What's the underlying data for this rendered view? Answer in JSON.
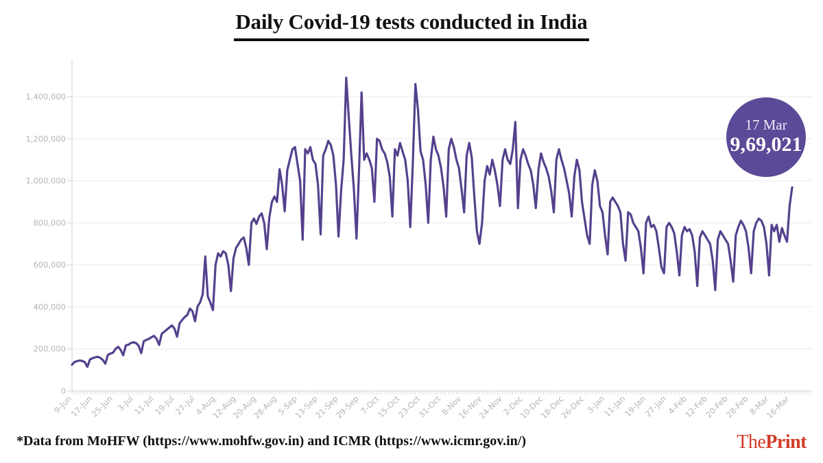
{
  "header": {
    "title": "Daily Covid-19 tests conducted in India"
  },
  "callout": {
    "date": "17 Mar",
    "value": "9,69,021"
  },
  "footer": {
    "source_note": "*Data from MoHFW (https://www.mohfw.gov.in) and ICMR (https://www.icmr.gov.in/)",
    "brand": {
      "the": "The",
      "print": "Print"
    }
  },
  "colors": {
    "line": "#54418d",
    "badge": "#5b4a97",
    "brand": "#d23b26",
    "gridline": "#ededed",
    "axis": "#d9d9d9",
    "axis_label": "#b6b3ba",
    "footer_text": "#101010"
  },
  "chart_data": {
    "type": "line",
    "title": "Daily Covid-19 tests conducted in India",
    "xlabel": "",
    "ylabel": "",
    "grid": "horizontal",
    "legend": "none",
    "ylim": [
      0,
      1500000
    ],
    "y_ticks": [
      0,
      200000,
      400000,
      600000,
      800000,
      1000000,
      1200000,
      1400000
    ],
    "x_tick_interval_days": 8,
    "x_tick_rotation": -45,
    "x_tick_labels": [
      "9-Jun",
      "17-Jun",
      "25-Jun",
      "3-Jul",
      "11-Jul",
      "19-Jul",
      "27-Jul",
      "4-Aug",
      "12-Aug",
      "20-Aug",
      "28-Aug",
      "5-Sep",
      "13-Sep",
      "21-Sep",
      "29-Sep",
      "7-Oct",
      "15-Oct",
      "23-Oct",
      "31-Oct",
      "8-Nov",
      "16-Nov",
      "24-Nov",
      "2-Dec",
      "10-Dec",
      "18-Dec",
      "26-Dec",
      "3-Jan",
      "11-Jan",
      "19-Jan",
      "27-Jan",
      "4-Feb",
      "12-Feb",
      "20-Feb",
      "28-Feb",
      "8-Mar",
      "16-Mar"
    ],
    "final_point": {
      "date": "17 Mar",
      "value": 969021
    },
    "series": [
      {
        "name": "Daily Covid-19 tests",
        "start_date": "9-Jun-2020",
        "end_date": "17-Mar-2021",
        "values": [
          125000,
          138000,
          142000,
          145000,
          143000,
          137000,
          115000,
          150000,
          156000,
          160000,
          163000,
          158000,
          148000,
          130000,
          172000,
          178000,
          182000,
          200000,
          210000,
          195000,
          170000,
          217000,
          220000,
          228000,
          232000,
          228000,
          215000,
          180000,
          237000,
          243000,
          248000,
          256000,
          262000,
          248000,
          219000,
          272000,
          282000,
          292000,
          302000,
          312000,
          296000,
          258000,
          322000,
          338000,
          352000,
          362000,
          392000,
          380000,
          332000,
          402000,
          422000,
          460000,
          640000,
          450000,
          420000,
          385000,
          600000,
          655000,
          640000,
          665000,
          655000,
          600000,
          475000,
          630000,
          680000,
          700000,
          720000,
          730000,
          680000,
          600000,
          800000,
          820000,
          795000,
          830000,
          845000,
          800000,
          675000,
          825000,
          900000,
          925000,
          900000,
          1055000,
          980000,
          855000,
          1050000,
          1100000,
          1150000,
          1160000,
          1080000,
          1000000,
          720000,
          1150000,
          1130000,
          1160000,
          1100000,
          1080000,
          980000,
          745000,
          1120000,
          1150000,
          1190000,
          1170000,
          1120000,
          980000,
          735000,
          950000,
          1100000,
          1490000,
          1300000,
          1120000,
          960000,
          725000,
          1050000,
          1420000,
          1100000,
          1130000,
          1100000,
          1060000,
          900000,
          1200000,
          1190000,
          1150000,
          1130000,
          1090000,
          1020000,
          830000,
          1150000,
          1120000,
          1180000,
          1140000,
          1100000,
          1000000,
          780000,
          1090000,
          1460000,
          1340000,
          1140000,
          1100000,
          980000,
          800000,
          1100000,
          1210000,
          1150000,
          1120000,
          1060000,
          970000,
          830000,
          1150000,
          1200000,
          1160000,
          1100000,
          1060000,
          960000,
          850000,
          1120000,
          1180000,
          1110000,
          920000,
          760000,
          700000,
          800000,
          1000000,
          1070000,
          1030000,
          1100000,
          1050000,
          980000,
          880000,
          1100000,
          1150000,
          1100000,
          1080000,
          1150000,
          1280000,
          870000,
          1100000,
          1150000,
          1120000,
          1080000,
          1050000,
          980000,
          870000,
          1050000,
          1130000,
          1090000,
          1060000,
          1020000,
          950000,
          850000,
          1100000,
          1150000,
          1100000,
          1060000,
          1000000,
          940000,
          830000,
          1020000,
          1100000,
          1050000,
          900000,
          820000,
          740000,
          700000,
          980000,
          1050000,
          1000000,
          880000,
          850000,
          740000,
          650000,
          900000,
          920000,
          900000,
          880000,
          850000,
          700000,
          620000,
          850000,
          840000,
          800000,
          780000,
          760000,
          680000,
          560000,
          800000,
          830000,
          780000,
          790000,
          760000,
          680000,
          590000,
          560000,
          780000,
          800000,
          780000,
          750000,
          660000,
          550000,
          740000,
          780000,
          760000,
          770000,
          740000,
          660000,
          500000,
          730000,
          760000,
          740000,
          720000,
          700000,
          620000,
          480000,
          720000,
          760000,
          740000,
          720000,
          700000,
          620000,
          520000,
          740000,
          780000,
          810000,
          790000,
          760000,
          680000,
          560000,
          760000,
          800000,
          820000,
          810000,
          780000,
          700000,
          550000,
          790000,
          760000,
          790000,
          710000,
          775000,
          740000,
          710000,
          880000,
          969021
        ]
      }
    ]
  }
}
